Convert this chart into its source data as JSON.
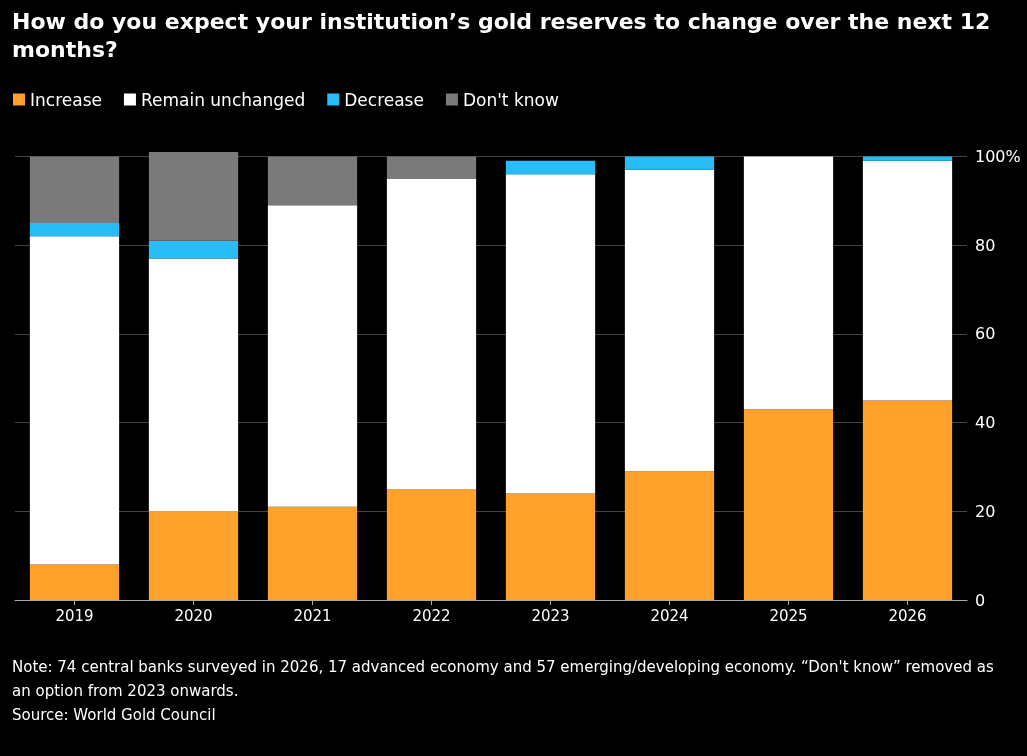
{
  "chart_data": {
    "type": "bar",
    "title": "How do you expect your institution’s gold reserves to change over the next 12 months?",
    "categories": [
      "2019",
      "2020",
      "2021",
      "2022",
      "2023",
      "2024",
      "2025",
      "2026"
    ],
    "series": [
      {
        "name": "Increase",
        "color": "#ffa12b",
        "values": [
          8,
          20,
          21,
          25,
          24,
          29,
          43,
          45
        ]
      },
      {
        "name": "Remain unchanged",
        "color": "#ffffff",
        "values": [
          74,
          57,
          68,
          70,
          72,
          68,
          57,
          54
        ]
      },
      {
        "name": "Decrease",
        "color": "#29bdf7",
        "values": [
          3,
          4,
          0,
          0,
          3,
          3,
          0,
          1
        ]
      },
      {
        "name": "Don't know",
        "color": "#7a7a7a",
        "values": [
          15,
          20,
          11,
          5,
          null,
          null,
          null,
          null
        ]
      }
    ],
    "stacked": true,
    "ylim": [
      0,
      101
    ],
    "yticks": [
      0,
      20,
      40,
      60,
      80,
      {
        "value": 100,
        "label": "100%"
      }
    ],
    "grid": "y",
    "legend": "top left",
    "annotations": [
      "Note: 74 central banks surveyed in 2026, 17 advanced economy and 57 emerging/developing economy. “Don't know” removed as an option from 2023 onwards.",
      "Source: World Gold Council"
    ]
  }
}
